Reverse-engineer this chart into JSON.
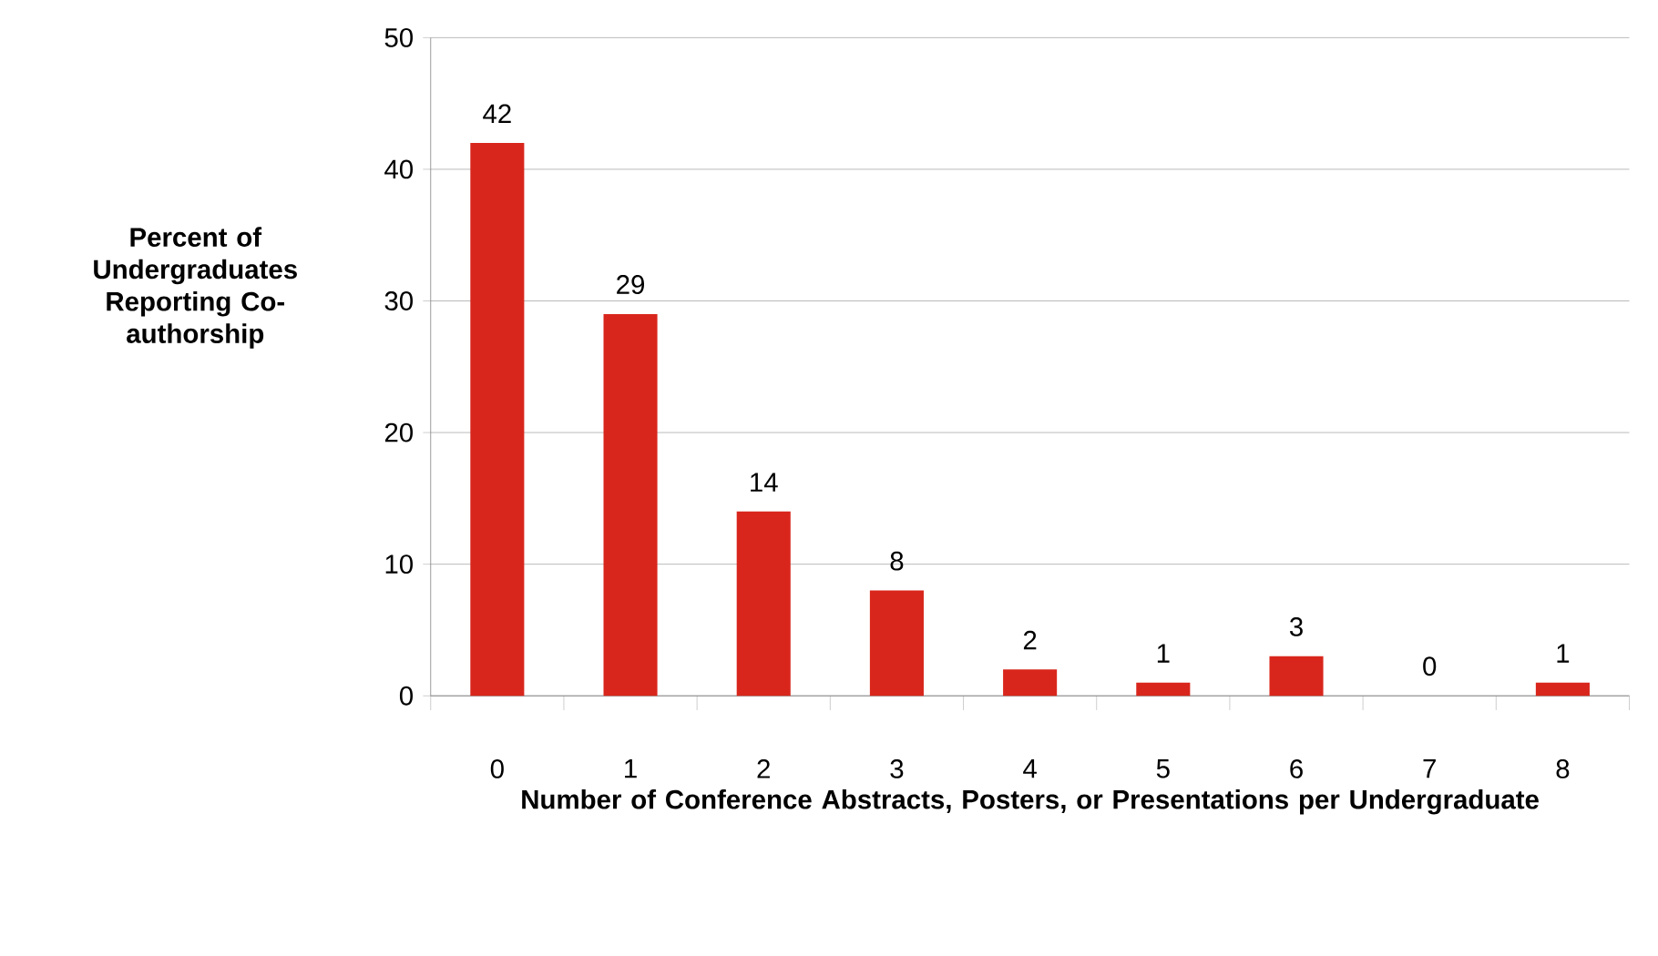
{
  "chart_data": {
    "type": "bar",
    "xlabel": "Number of Conference Abstracts, Posters, or Presentations per Undergraduate",
    "ylabel": "Percent of Undergraduates Reporting Co-authorship",
    "categories": [
      "0",
      "1",
      "2",
      "3",
      "4",
      "5",
      "6",
      "7",
      "8"
    ],
    "values": [
      42,
      29,
      14,
      8,
      2,
      1,
      3,
      0,
      1
    ],
    "color": "#d9261c",
    "ylim": [
      0,
      50
    ],
    "yticks": [
      0,
      10,
      20,
      30,
      40,
      50
    ],
    "grid": "y",
    "data_labels": true
  }
}
